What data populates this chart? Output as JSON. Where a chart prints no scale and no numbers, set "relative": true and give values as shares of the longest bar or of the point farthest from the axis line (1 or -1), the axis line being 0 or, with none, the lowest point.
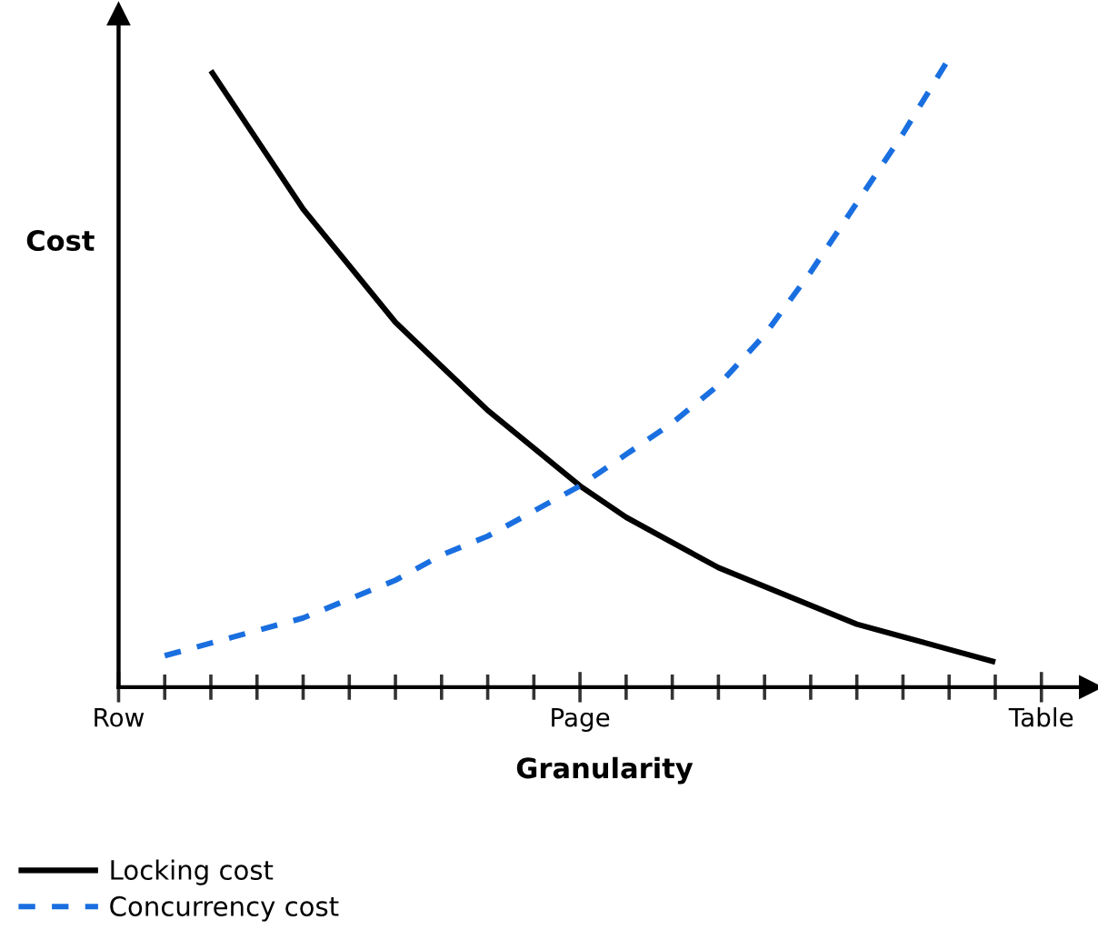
{
  "chart_data": {
    "type": "line",
    "relative": true,
    "xlabel": "Granularity",
    "ylabel": "Cost",
    "categories": [
      "Row",
      null,
      null,
      null,
      null,
      null,
      null,
      null,
      null,
      null,
      "Page",
      null,
      null,
      null,
      null,
      null,
      null,
      null,
      null,
      null,
      "Table"
    ],
    "tick_labels": "x",
    "grid": false,
    "legend": "bottom left",
    "marker": "none",
    "series": [
      {
        "name": "Locking cost",
        "color": "#000000",
        "line_style": "solid",
        "values": [
          null,
          null,
          0.98,
          0.87,
          0.76,
          0.67,
          0.58,
          0.51,
          0.44,
          0.38,
          0.32,
          0.27,
          0.23,
          0.19,
          0.16,
          0.13,
          0.1,
          0.08,
          0.06,
          0.04,
          null
        ]
      },
      {
        "name": "Concurrency cost",
        "color": "#1a6fe0",
        "line_style": "dashed",
        "values": [
          null,
          0.05,
          0.07,
          0.09,
          0.11,
          0.14,
          0.17,
          0.21,
          0.24,
          0.28,
          0.32,
          0.37,
          0.42,
          0.48,
          0.56,
          0.66,
          0.77,
          0.88,
          1.0,
          null,
          null
        ]
      }
    ]
  }
}
